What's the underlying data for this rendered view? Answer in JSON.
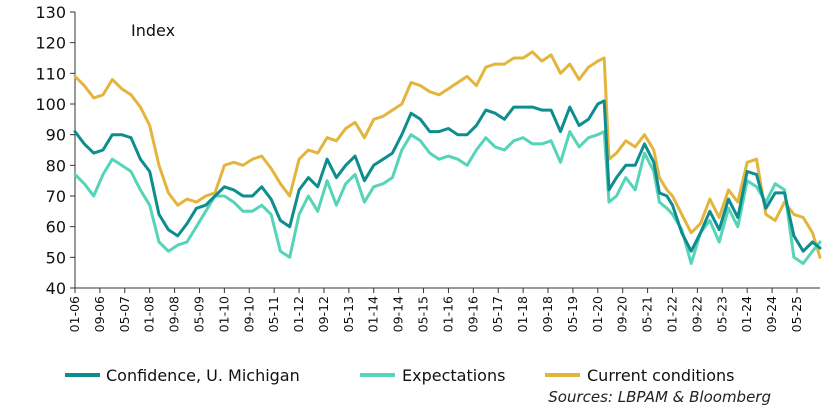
{
  "chart_data": {
    "type": "line",
    "title": "",
    "unit_label": "Index",
    "source": "Sources: LBPAM & Bloomberg",
    "ylim": [
      40,
      130
    ],
    "yticks": [
      40,
      50,
      60,
      70,
      80,
      90,
      100,
      110,
      120,
      130
    ],
    "xrange": [
      2006.0,
      2025.95
    ],
    "xticks": [
      "01-06",
      "09-06",
      "05-07",
      "01-08",
      "09-08",
      "05-09",
      "01-10",
      "09-10",
      "05-11",
      "01-12",
      "09-12",
      "05-13",
      "01-14",
      "09-14",
      "05-15",
      "01-16",
      "09-16",
      "05-17",
      "01-18",
      "09-18",
      "05-19",
      "01-20",
      "09-20",
      "05-21",
      "01-22",
      "09-22",
      "05-23",
      "01-24",
      "09-24",
      "05-25"
    ],
    "series": [
      {
        "name": "Confidence, U. Michigan",
        "color": "#0e8d8f",
        "points": [
          [
            2006.0,
            91
          ],
          [
            2006.25,
            87
          ],
          [
            2006.5,
            84
          ],
          [
            2006.75,
            85
          ],
          [
            2007.0,
            90
          ],
          [
            2007.25,
            90
          ],
          [
            2007.5,
            89
          ],
          [
            2007.75,
            82
          ],
          [
            2008.0,
            78
          ],
          [
            2008.25,
            64
          ],
          [
            2008.5,
            59
          ],
          [
            2008.75,
            57
          ],
          [
            2009.0,
            61
          ],
          [
            2009.25,
            66
          ],
          [
            2009.5,
            67
          ],
          [
            2009.75,
            70
          ],
          [
            2010.0,
            73
          ],
          [
            2010.25,
            72
          ],
          [
            2010.5,
            70
          ],
          [
            2010.75,
            70
          ],
          [
            2011.0,
            73
          ],
          [
            2011.25,
            69
          ],
          [
            2011.5,
            62
          ],
          [
            2011.75,
            60
          ],
          [
            2012.0,
            72
          ],
          [
            2012.25,
            76
          ],
          [
            2012.5,
            73
          ],
          [
            2012.75,
            82
          ],
          [
            2013.0,
            76
          ],
          [
            2013.25,
            80
          ],
          [
            2013.5,
            83
          ],
          [
            2013.75,
            75
          ],
          [
            2014.0,
            80
          ],
          [
            2014.25,
            82
          ],
          [
            2014.5,
            84
          ],
          [
            2014.75,
            90
          ],
          [
            2015.0,
            97
          ],
          [
            2015.25,
            95
          ],
          [
            2015.5,
            91
          ],
          [
            2015.75,
            91
          ],
          [
            2016.0,
            92
          ],
          [
            2016.25,
            90
          ],
          [
            2016.5,
            90
          ],
          [
            2016.75,
            93
          ],
          [
            2017.0,
            98
          ],
          [
            2017.25,
            97
          ],
          [
            2017.5,
            95
          ],
          [
            2017.75,
            99
          ],
          [
            2018.0,
            99
          ],
          [
            2018.25,
            99
          ],
          [
            2018.5,
            98
          ],
          [
            2018.75,
            98
          ],
          [
            2019.0,
            91
          ],
          [
            2019.25,
            99
          ],
          [
            2019.5,
            93
          ],
          [
            2019.75,
            95
          ],
          [
            2020.0,
            100
          ],
          [
            2020.17,
            101
          ],
          [
            2020.3,
            72
          ],
          [
            2020.5,
            76
          ],
          [
            2020.75,
            80
          ],
          [
            2021.0,
            80
          ],
          [
            2021.25,
            87
          ],
          [
            2021.5,
            81
          ],
          [
            2021.65,
            71
          ],
          [
            2021.85,
            70
          ],
          [
            2022.0,
            67
          ],
          [
            2022.25,
            58
          ],
          [
            2022.5,
            52
          ],
          [
            2022.75,
            58
          ],
          [
            2023.0,
            65
          ],
          [
            2023.25,
            59
          ],
          [
            2023.5,
            69
          ],
          [
            2023.75,
            63
          ],
          [
            2024.0,
            78
          ],
          [
            2024.25,
            77
          ],
          [
            2024.5,
            66
          ],
          [
            2024.75,
            71
          ],
          [
            2025.0,
            71
          ],
          [
            2025.25,
            57
          ],
          [
            2025.5,
            52
          ],
          [
            2025.75,
            55
          ],
          [
            2025.95,
            53
          ]
        ]
      },
      {
        "name": "Expectations",
        "color": "#55d4b8",
        "points": [
          [
            2006.0,
            77
          ],
          [
            2006.25,
            74
          ],
          [
            2006.5,
            70
          ],
          [
            2006.75,
            77
          ],
          [
            2007.0,
            82
          ],
          [
            2007.25,
            80
          ],
          [
            2007.5,
            78
          ],
          [
            2007.75,
            72
          ],
          [
            2008.0,
            67
          ],
          [
            2008.25,
            55
          ],
          [
            2008.5,
            52
          ],
          [
            2008.75,
            54
          ],
          [
            2009.0,
            55
          ],
          [
            2009.25,
            60
          ],
          [
            2009.5,
            65
          ],
          [
            2009.75,
            70
          ],
          [
            2010.0,
            70
          ],
          [
            2010.25,
            68
          ],
          [
            2010.5,
            65
          ],
          [
            2010.75,
            65
          ],
          [
            2011.0,
            67
          ],
          [
            2011.25,
            64
          ],
          [
            2011.5,
            52
          ],
          [
            2011.75,
            50
          ],
          [
            2012.0,
            64
          ],
          [
            2012.25,
            70
          ],
          [
            2012.5,
            65
          ],
          [
            2012.75,
            75
          ],
          [
            2013.0,
            67
          ],
          [
            2013.25,
            74
          ],
          [
            2013.5,
            77
          ],
          [
            2013.75,
            68
          ],
          [
            2014.0,
            73
          ],
          [
            2014.25,
            74
          ],
          [
            2014.5,
            76
          ],
          [
            2014.75,
            85
          ],
          [
            2015.0,
            90
          ],
          [
            2015.25,
            88
          ],
          [
            2015.5,
            84
          ],
          [
            2015.75,
            82
          ],
          [
            2016.0,
            83
          ],
          [
            2016.25,
            82
          ],
          [
            2016.5,
            80
          ],
          [
            2016.75,
            85
          ],
          [
            2017.0,
            89
          ],
          [
            2017.25,
            86
          ],
          [
            2017.5,
            85
          ],
          [
            2017.75,
            88
          ],
          [
            2018.0,
            89
          ],
          [
            2018.25,
            87
          ],
          [
            2018.5,
            87
          ],
          [
            2018.75,
            88
          ],
          [
            2019.0,
            81
          ],
          [
            2019.25,
            91
          ],
          [
            2019.5,
            86
          ],
          [
            2019.75,
            89
          ],
          [
            2020.0,
            90
          ],
          [
            2020.17,
            91
          ],
          [
            2020.3,
            68
          ],
          [
            2020.5,
            70
          ],
          [
            2020.75,
            76
          ],
          [
            2021.0,
            72
          ],
          [
            2021.25,
            84
          ],
          [
            2021.5,
            78
          ],
          [
            2021.65,
            68
          ],
          [
            2021.85,
            66
          ],
          [
            2022.0,
            64
          ],
          [
            2022.25,
            59
          ],
          [
            2022.5,
            48
          ],
          [
            2022.75,
            58
          ],
          [
            2023.0,
            62
          ],
          [
            2023.25,
            55
          ],
          [
            2023.5,
            66
          ],
          [
            2023.75,
            60
          ],
          [
            2024.0,
            75
          ],
          [
            2024.25,
            73
          ],
          [
            2024.5,
            68
          ],
          [
            2024.75,
            74
          ],
          [
            2025.0,
            72
          ],
          [
            2025.25,
            50
          ],
          [
            2025.5,
            48
          ],
          [
            2025.75,
            52
          ],
          [
            2025.95,
            55
          ]
        ]
      },
      {
        "name": "Current conditions",
        "color": "#e3b53c",
        "points": [
          [
            2006.0,
            109
          ],
          [
            2006.25,
            106
          ],
          [
            2006.5,
            102
          ],
          [
            2006.75,
            103
          ],
          [
            2007.0,
            108
          ],
          [
            2007.25,
            105
          ],
          [
            2007.5,
            103
          ],
          [
            2007.75,
            99
          ],
          [
            2008.0,
            93
          ],
          [
            2008.25,
            80
          ],
          [
            2008.5,
            71
          ],
          [
            2008.75,
            67
          ],
          [
            2009.0,
            69
          ],
          [
            2009.25,
            68
          ],
          [
            2009.5,
            70
          ],
          [
            2009.75,
            71
          ],
          [
            2010.0,
            80
          ],
          [
            2010.25,
            81
          ],
          [
            2010.5,
            80
          ],
          [
            2010.75,
            82
          ],
          [
            2011.0,
            83
          ],
          [
            2011.25,
            79
          ],
          [
            2011.5,
            74
          ],
          [
            2011.75,
            70
          ],
          [
            2012.0,
            82
          ],
          [
            2012.25,
            85
          ],
          [
            2012.5,
            84
          ],
          [
            2012.75,
            89
          ],
          [
            2013.0,
            88
          ],
          [
            2013.25,
            92
          ],
          [
            2013.5,
            94
          ],
          [
            2013.75,
            89
          ],
          [
            2014.0,
            95
          ],
          [
            2014.25,
            96
          ],
          [
            2014.5,
            98
          ],
          [
            2014.75,
            100
          ],
          [
            2015.0,
            107
          ],
          [
            2015.25,
            106
          ],
          [
            2015.5,
            104
          ],
          [
            2015.75,
            103
          ],
          [
            2016.0,
            105
          ],
          [
            2016.25,
            107
          ],
          [
            2016.5,
            109
          ],
          [
            2016.75,
            106
          ],
          [
            2017.0,
            112
          ],
          [
            2017.25,
            113
          ],
          [
            2017.5,
            113
          ],
          [
            2017.75,
            115
          ],
          [
            2018.0,
            115
          ],
          [
            2018.25,
            117
          ],
          [
            2018.5,
            114
          ],
          [
            2018.75,
            116
          ],
          [
            2019.0,
            110
          ],
          [
            2019.25,
            113
          ],
          [
            2019.5,
            108
          ],
          [
            2019.75,
            112
          ],
          [
            2020.0,
            114
          ],
          [
            2020.17,
            115
          ],
          [
            2020.3,
            82
          ],
          [
            2020.5,
            84
          ],
          [
            2020.75,
            88
          ],
          [
            2021.0,
            86
          ],
          [
            2021.25,
            90
          ],
          [
            2021.5,
            85
          ],
          [
            2021.65,
            76
          ],
          [
            2021.85,
            72
          ],
          [
            2022.0,
            70
          ],
          [
            2022.25,
            64
          ],
          [
            2022.5,
            58
          ],
          [
            2022.75,
            61
          ],
          [
            2023.0,
            69
          ],
          [
            2023.25,
            63
          ],
          [
            2023.5,
            72
          ],
          [
            2023.75,
            68
          ],
          [
            2024.0,
            81
          ],
          [
            2024.25,
            82
          ],
          [
            2024.5,
            64
          ],
          [
            2024.75,
            62
          ],
          [
            2025.0,
            68
          ],
          [
            2025.25,
            64
          ],
          [
            2025.5,
            63
          ],
          [
            2025.75,
            58
          ],
          [
            2025.95,
            50
          ]
        ]
      }
    ]
  }
}
